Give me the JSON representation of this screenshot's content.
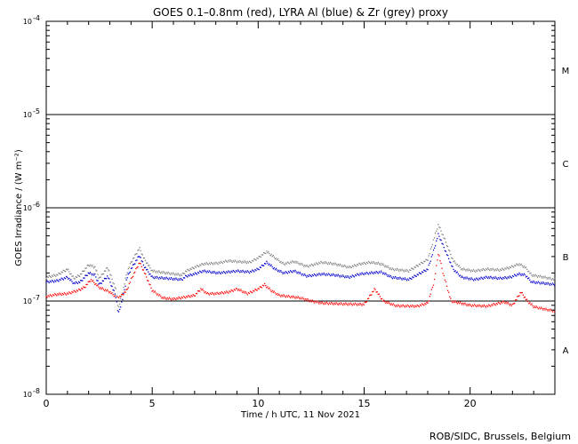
{
  "chart_data": {
    "type": "scatter",
    "title": "GOES 0.1–0.8nm (red), LYRA Al (blue) & Zr (grey) proxy",
    "xlabel": "Time / h UTC, 11 Nov 2021",
    "ylabel": "GOES Irradiance / (W m⁻²)",
    "xlim": [
      0,
      24
    ],
    "ylim": [
      1e-08,
      0.0001
    ],
    "yscale": "log",
    "x_ticks": [
      0,
      5,
      10,
      15,
      20
    ],
    "y_ticks": [
      {
        "value": 1e-08,
        "mantissa": "10",
        "exponent": "-8"
      },
      {
        "value": 1e-07,
        "mantissa": "10",
        "exponent": "-7"
      },
      {
        "value": 1e-06,
        "mantissa": "10",
        "exponent": "-6"
      },
      {
        "value": 1e-05,
        "mantissa": "10",
        "exponent": "-5"
      },
      {
        "value": 0.0001,
        "mantissa": "10",
        "exponent": "-4"
      }
    ],
    "reference_lines": [
      1e-07,
      1e-06,
      1e-05
    ],
    "flare_classes": [
      {
        "label": "A",
        "value": 3e-08
      },
      {
        "label": "B",
        "value": 3e-07
      },
      {
        "label": "C",
        "value": 3e-06
      },
      {
        "label": "M",
        "value": 3e-05
      }
    ],
    "grid": false,
    "series": [
      {
        "color": "#ff0000",
        "points": [
          [
            0.0,
            1.12e-07
          ],
          [
            0.5,
            1.18e-07
          ],
          [
            1.0,
            1.2e-07
          ],
          [
            1.5,
            1.3e-07
          ],
          [
            1.8,
            1.4e-07
          ],
          [
            2.1,
            1.7e-07
          ],
          [
            2.5,
            1.4e-07
          ],
          [
            3.0,
            1.25e-07
          ],
          [
            3.3,
            1.1e-07
          ],
          [
            3.5,
            1.12e-07
          ],
          [
            3.8,
            1.3e-07
          ],
          [
            4.0,
            1.7e-07
          ],
          [
            4.4,
            2.6e-07
          ],
          [
            4.6,
            2.1e-07
          ],
          [
            5.0,
            1.3e-07
          ],
          [
            5.5,
            1.08e-07
          ],
          [
            6.0,
            1.05e-07
          ],
          [
            6.5,
            1.1e-07
          ],
          [
            7.0,
            1.15e-07
          ],
          [
            7.3,
            1.35e-07
          ],
          [
            7.6,
            1.2e-07
          ],
          [
            8.0,
            1.2e-07
          ],
          [
            8.6,
            1.25e-07
          ],
          [
            9.0,
            1.35e-07
          ],
          [
            9.5,
            1.2e-07
          ],
          [
            10.0,
            1.35e-07
          ],
          [
            10.3,
            1.5e-07
          ],
          [
            10.6,
            1.3e-07
          ],
          [
            11.0,
            1.15e-07
          ],
          [
            12.0,
            1.08e-07
          ],
          [
            12.5,
            1e-07
          ],
          [
            13.0,
            9.5e-08
          ],
          [
            14.0,
            9.3e-08
          ],
          [
            15.0,
            9.2e-08
          ],
          [
            15.5,
            1.35e-07
          ],
          [
            15.9,
            1e-07
          ],
          [
            16.5,
            8.9e-08
          ],
          [
            17.5,
            8.8e-08
          ],
          [
            18.0,
            9.5e-08
          ],
          [
            18.3,
            1.6e-07
          ],
          [
            18.5,
            3.3e-07
          ],
          [
            18.75,
            1.9e-07
          ],
          [
            19.1,
            1e-07
          ],
          [
            20.0,
            9e-08
          ],
          [
            20.8,
            8.8e-08
          ],
          [
            21.3,
            9.4e-08
          ],
          [
            21.6,
            9.8e-08
          ],
          [
            22.0,
            9e-08
          ],
          [
            22.4,
            1.25e-07
          ],
          [
            22.7,
            1e-07
          ],
          [
            23.0,
            8.7e-08
          ],
          [
            23.5,
            8.2e-08
          ],
          [
            24.0,
            7.8e-08
          ]
        ]
      },
      {
        "color": "#0000cc",
        "points": [
          [
            0.0,
            1.6e-07
          ],
          [
            0.5,
            1.65e-07
          ],
          [
            1.0,
            1.8e-07
          ],
          [
            1.3,
            1.55e-07
          ],
          [
            1.6,
            1.6e-07
          ],
          [
            2.0,
            2e-07
          ],
          [
            2.3,
            1.9e-07
          ],
          [
            2.5,
            1.5e-07
          ],
          [
            2.9,
            1.85e-07
          ],
          [
            3.3,
            1.1e-07
          ],
          [
            3.4,
            7.2e-08
          ],
          [
            3.6,
            1.05e-07
          ],
          [
            3.8,
            1.75e-07
          ],
          [
            4.0,
            2.2e-07
          ],
          [
            4.4,
            3.1e-07
          ],
          [
            4.6,
            2.4e-07
          ],
          [
            5.0,
            1.8e-07
          ],
          [
            6.4,
            1.7e-07
          ],
          [
            6.6,
            1.85e-07
          ],
          [
            7.0,
            1.95e-07
          ],
          [
            7.4,
            2.1e-07
          ],
          [
            8.1,
            2e-07
          ],
          [
            8.6,
            2.05e-07
          ],
          [
            9.0,
            2.1e-07
          ],
          [
            9.6,
            2.05e-07
          ],
          [
            10.0,
            2.2e-07
          ],
          [
            10.4,
            2.6e-07
          ],
          [
            10.8,
            2.2e-07
          ],
          [
            11.2,
            2e-07
          ],
          [
            11.7,
            2.1e-07
          ],
          [
            12.3,
            1.85e-07
          ],
          [
            13.0,
            1.95e-07
          ],
          [
            13.6,
            1.9e-07
          ],
          [
            14.3,
            1.8e-07
          ],
          [
            14.8,
            1.95e-07
          ],
          [
            15.3,
            2e-07
          ],
          [
            15.8,
            2.05e-07
          ],
          [
            16.3,
            1.8e-07
          ],
          [
            17.1,
            1.7e-07
          ],
          [
            18.0,
            2.2e-07
          ],
          [
            18.3,
            3.6e-07
          ],
          [
            18.5,
            5.2e-07
          ],
          [
            18.8,
            3.6e-07
          ],
          [
            19.2,
            2.2e-07
          ],
          [
            19.6,
            1.8e-07
          ],
          [
            20.2,
            1.7e-07
          ],
          [
            20.8,
            1.8e-07
          ],
          [
            21.4,
            1.75e-07
          ],
          [
            21.9,
            1.8e-07
          ],
          [
            22.3,
            1.95e-07
          ],
          [
            22.6,
            1.9e-07
          ],
          [
            22.9,
            1.6e-07
          ],
          [
            23.5,
            1.55e-07
          ],
          [
            24.0,
            1.5e-07
          ]
        ]
      },
      {
        "color": "#808080",
        "points": [
          [
            0.0,
            1.8e-07
          ],
          [
            0.5,
            1.9e-07
          ],
          [
            1.0,
            2.2e-07
          ],
          [
            1.3,
            1.75e-07
          ],
          [
            1.6,
            1.9e-07
          ],
          [
            2.0,
            2.45e-07
          ],
          [
            2.3,
            2.3e-07
          ],
          [
            2.5,
            1.75e-07
          ],
          [
            2.9,
            2.3e-07
          ],
          [
            3.3,
            1.3e-07
          ],
          [
            3.4,
            8.2e-08
          ],
          [
            3.6,
            1.25e-07
          ],
          [
            3.8,
            2e-07
          ],
          [
            4.0,
            2.6e-07
          ],
          [
            4.4,
            3.7e-07
          ],
          [
            4.6,
            2.9e-07
          ],
          [
            5.0,
            2.1e-07
          ],
          [
            6.4,
            1.9e-07
          ],
          [
            6.6,
            2.1e-07
          ],
          [
            7.0,
            2.3e-07
          ],
          [
            7.4,
            2.5e-07
          ],
          [
            8.1,
            2.55e-07
          ],
          [
            8.6,
            2.7e-07
          ],
          [
            9.0,
            2.65e-07
          ],
          [
            9.6,
            2.6e-07
          ],
          [
            10.0,
            2.9e-07
          ],
          [
            10.4,
            3.4e-07
          ],
          [
            10.8,
            2.9e-07
          ],
          [
            11.2,
            2.5e-07
          ],
          [
            11.7,
            2.65e-07
          ],
          [
            12.3,
            2.35e-07
          ],
          [
            13.0,
            2.6e-07
          ],
          [
            13.6,
            2.5e-07
          ],
          [
            14.3,
            2.3e-07
          ],
          [
            14.8,
            2.5e-07
          ],
          [
            15.3,
            2.6e-07
          ],
          [
            15.8,
            2.5e-07
          ],
          [
            16.3,
            2.2e-07
          ],
          [
            17.1,
            2.1e-07
          ],
          [
            18.0,
            2.8e-07
          ],
          [
            18.3,
            4.7e-07
          ],
          [
            18.5,
            6.6e-07
          ],
          [
            18.8,
            4.6e-07
          ],
          [
            19.2,
            2.7e-07
          ],
          [
            19.6,
            2.2e-07
          ],
          [
            20.2,
            2.1e-07
          ],
          [
            20.8,
            2.2e-07
          ],
          [
            21.4,
            2.15e-07
          ],
          [
            21.9,
            2.3e-07
          ],
          [
            22.3,
            2.5e-07
          ],
          [
            22.6,
            2.3e-07
          ],
          [
            22.9,
            1.9e-07
          ],
          [
            23.5,
            1.8e-07
          ],
          [
            24.0,
            1.7e-07
          ]
        ]
      }
    ],
    "credit": "ROB/SIDC, Brussels, Belgium"
  }
}
